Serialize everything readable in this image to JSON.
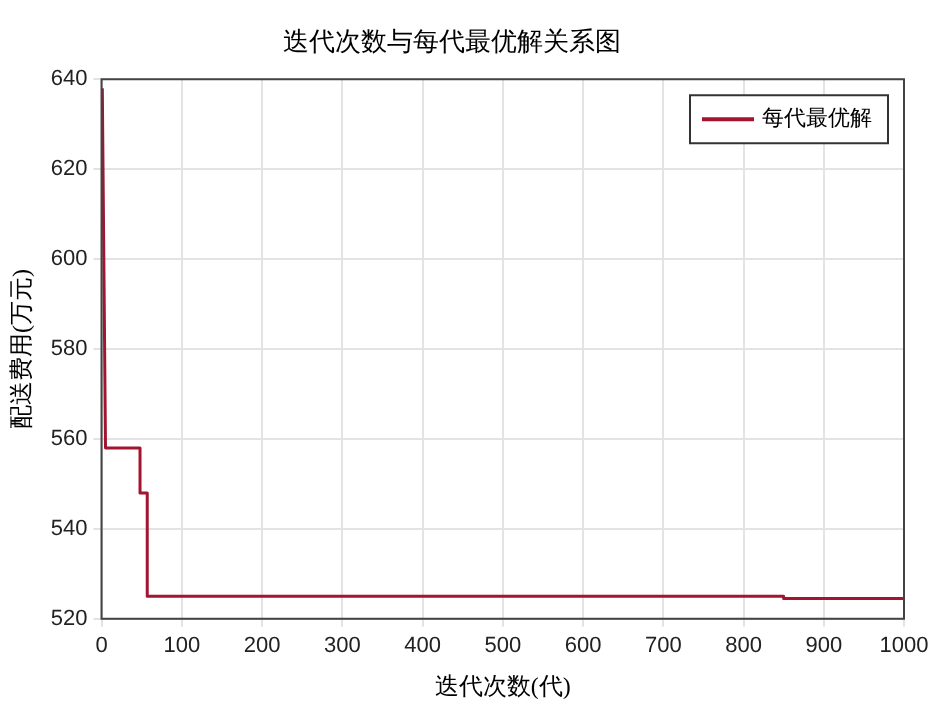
{
  "chart_data": {
    "type": "line",
    "title": "迭代次数与每代最优解关系图",
    "xlabel": "迭代次数(代)",
    "ylabel": "配送费用(万元)",
    "x": [
      1,
      5,
      48,
      48,
      57,
      57,
      850,
      850,
      1000
    ],
    "series": [
      {
        "name": "每代最优解",
        "color": "#a2142f",
        "values": [
          638,
          558,
          558,
          548,
          548,
          525,
          525,
          524.5,
          524.5
        ]
      }
    ],
    "xlim": [
      0,
      1000
    ],
    "xticks": [
      0,
      100,
      200,
      300,
      400,
      500,
      600,
      700,
      800,
      900,
      1000
    ],
    "ylim": [
      520,
      640
    ],
    "yticks": [
      520,
      540,
      560,
      580,
      600,
      620,
      640
    ],
    "grid": true,
    "legend": "top right",
    "marker": "none",
    "line_style": "solid"
  }
}
